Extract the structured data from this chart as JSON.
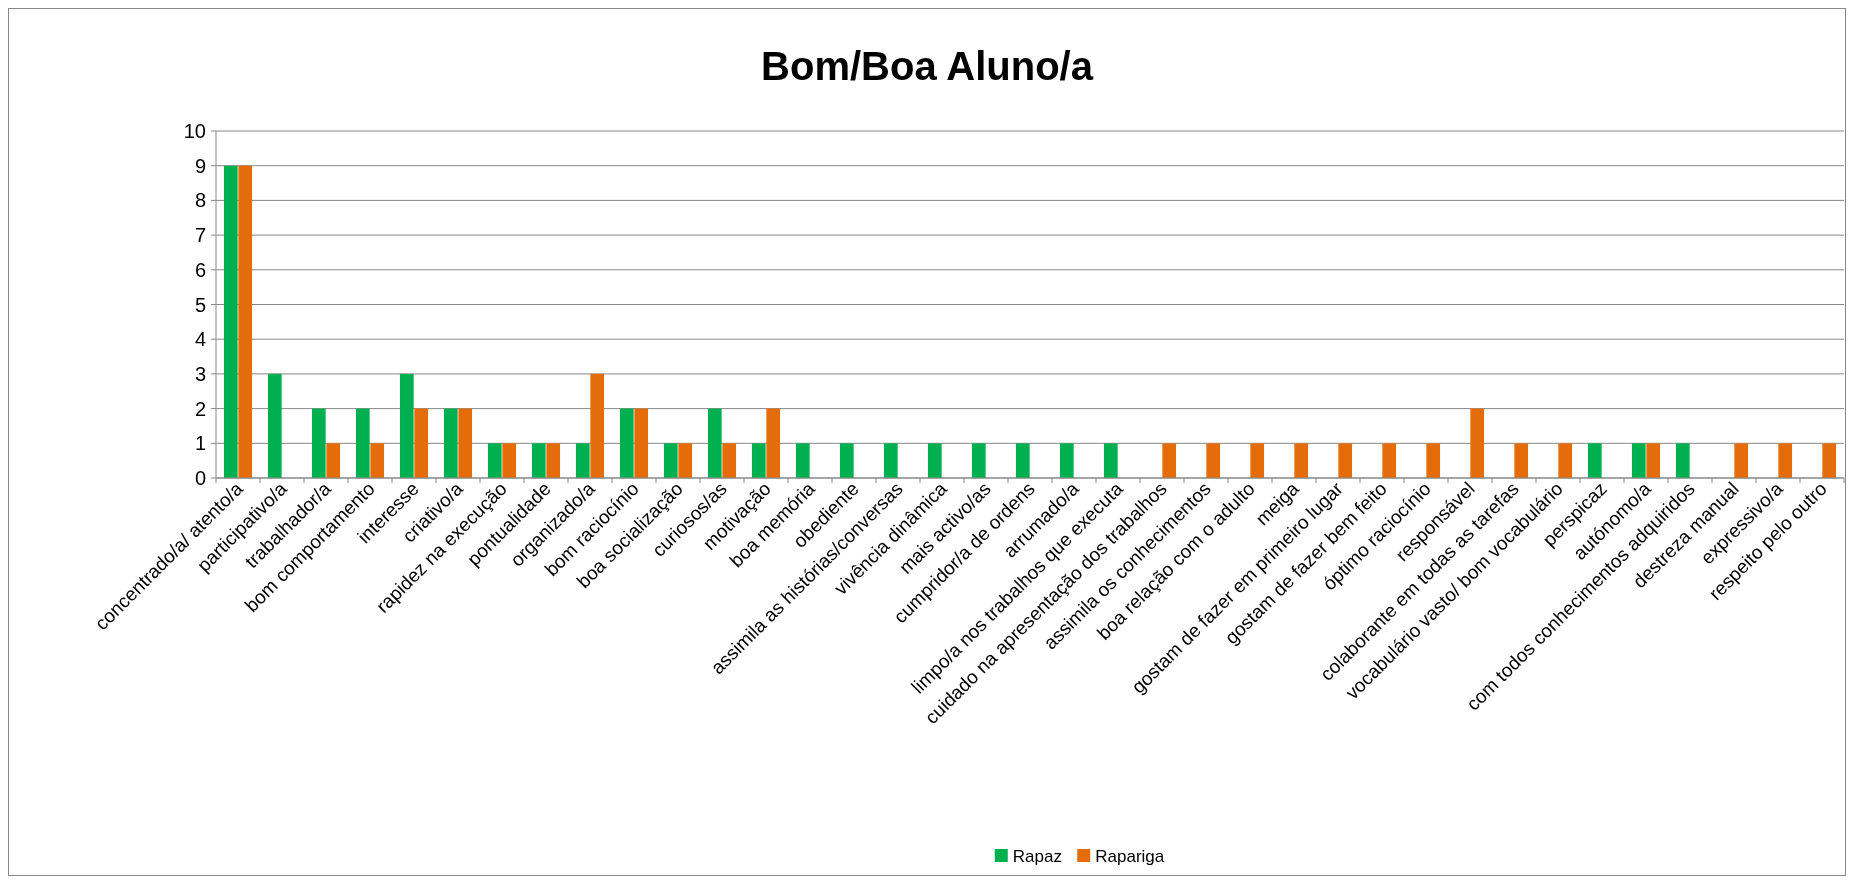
{
  "chart_data": {
    "type": "bar",
    "title": "Bom/Boa Aluno/a",
    "categories": [
      "concentrado/a/ atento/a",
      "participativo/a",
      "trabalhador/a",
      "bom comportamento",
      "interesse",
      "criativo/a",
      "rapidez na execução",
      "pontualidade",
      "organizado/a",
      "bom raciocínio",
      "boa socialização",
      "curiosos/as",
      "motivação",
      "boa memória",
      "obediente",
      "assimila as histórias/conversas",
      "vivência dinâmica",
      "mais activo/as",
      "cumpridor/a de ordens",
      "arrumado/a",
      "limpo/a nos trabalhos que executa",
      "cuidado na apresentação dos trabalhos",
      "assimila os conhecimentos",
      "boa relação com o adulto",
      "meiga",
      "gostam de fazer em primeiro lugar",
      "gostam de fazer bem feito",
      "óptimo raciocínio",
      "responsável",
      "colaborante em todas as tarefas",
      "vocabulário vasto/ bom vocabulário",
      "perspicaz",
      "autónomo/a",
      "com todos conhecimentos adquiridos",
      "destreza manual",
      "expressivo/a",
      "respeito pelo outro"
    ],
    "series": [
      {
        "name": "Rapaz",
        "color": "#00b050",
        "values": [
          9,
          3,
          2,
          2,
          3,
          2,
          1,
          1,
          1,
          2,
          1,
          2,
          1,
          1,
          1,
          1,
          1,
          1,
          1,
          1,
          1,
          0,
          0,
          0,
          0,
          0,
          0,
          0,
          0,
          0,
          0,
          1,
          1,
          1,
          0,
          0,
          0
        ]
      },
      {
        "name": "Rapariga",
        "color": "#e46c0a",
        "values": [
          9,
          0,
          1,
          1,
          2,
          2,
          1,
          1,
          3,
          2,
          1,
          1,
          2,
          0,
          0,
          0,
          0,
          0,
          0,
          0,
          0,
          1,
          1,
          1,
          1,
          1,
          1,
          1,
          2,
          1,
          1,
          0,
          1,
          0,
          1,
          1,
          1
        ]
      }
    ],
    "ylim": [
      0,
      10
    ],
    "yticks": [
      0,
      1,
      2,
      3,
      4,
      5,
      6,
      7,
      8,
      9,
      10
    ],
    "grid": "y",
    "legend": "bottom"
  }
}
